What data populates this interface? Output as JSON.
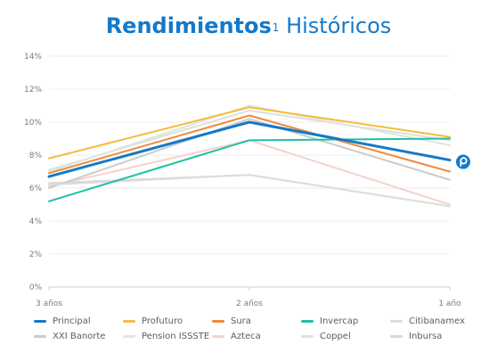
{
  "title": {
    "bold": "Rendimientos",
    "sup": "1",
    "rest": " Históricos"
  },
  "chart_data": {
    "type": "line",
    "categories": [
      "3 años",
      "2 años",
      "1 año"
    ],
    "yticks": [
      "0%",
      "2%",
      "4%",
      "6%",
      "8%",
      "10%",
      "12%",
      "14%"
    ],
    "ylim": [
      0,
      14
    ],
    "series": [
      {
        "name": "Principal",
        "values": [
          6.7,
          10.0,
          7.7
        ],
        "color": "#1479c9",
        "width": 3,
        "highlight": true
      },
      {
        "name": "Profuturo",
        "values": [
          7.8,
          10.9,
          9.1
        ],
        "color": "#f5bb3c",
        "width": 2
      },
      {
        "name": "Sura",
        "values": [
          6.9,
          10.4,
          7.0
        ],
        "color": "#f08a3c",
        "width": 2
      },
      {
        "name": "Invercap",
        "values": [
          5.2,
          8.9,
          9.0
        ],
        "color": "#1fc1a3",
        "width": 2
      },
      {
        "name": "Citibanamex",
        "values": [
          6.2,
          6.8,
          4.9
        ],
        "color": "#dddddd",
        "width": 2
      },
      {
        "name": "XXI Banorte",
        "values": [
          6.0,
          10.2,
          6.5
        ],
        "color": "#cccccc",
        "width": 2
      },
      {
        "name": "Pension ISSSTE",
        "values": [
          7.0,
          11.0,
          8.6
        ],
        "color": "#dbe7e0",
        "width": 2
      },
      {
        "name": "Azteca",
        "values": [
          6.1,
          8.9,
          5.0
        ],
        "color": "#f5d3cb",
        "width": 2
      },
      {
        "name": "Coppel",
        "values": [
          7.1,
          10.7,
          8.9
        ],
        "color": "#dfe0d9",
        "width": 2
      },
      {
        "name": "Inbursa",
        "values": [
          6.3,
          6.8,
          4.9
        ],
        "color": "#d7d7d7",
        "width": 2
      }
    ],
    "grid": true,
    "legend_position": "bottom",
    "end_marker": {
      "series": "Principal",
      "icon": "principal-logo-icon",
      "color": "#1479c9"
    }
  }
}
